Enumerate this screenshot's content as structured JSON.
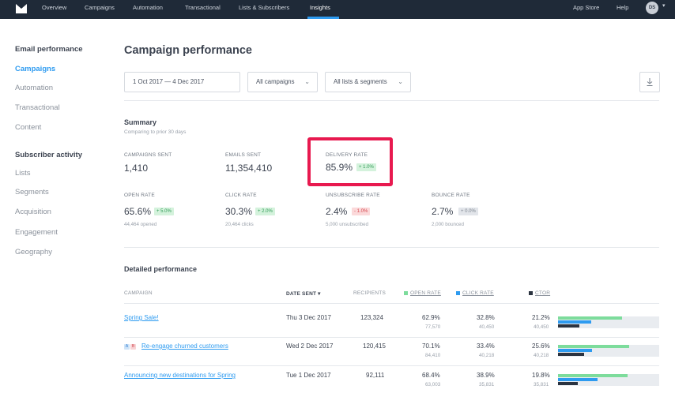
{
  "topnav": {
    "items": [
      "Overview",
      "Campaigns",
      "Automation",
      "Transactional",
      "Lists & Subscribers",
      "Insights"
    ],
    "right_items": [
      "App Store",
      "Help"
    ],
    "avatar_initials": "DS"
  },
  "sidebar": {
    "email_heading": "Email performance",
    "email_items": [
      "Campaigns",
      "Automation",
      "Transactional",
      "Content"
    ],
    "subscriber_heading": "Subscriber activity",
    "subscriber_items": [
      "Lists",
      "Segments",
      "Acquisition",
      "Engagement",
      "Geography"
    ]
  },
  "main": {
    "title": "Campaign performance",
    "date_range": "1 Oct 2017  —  4 Dec 2017",
    "campaign_filter": "All campaigns",
    "list_filter": "All lists & segments"
  },
  "summary": {
    "title": "Summary",
    "subtitle": "Comparing to prior 30 days",
    "metrics": [
      {
        "label": "CAMPAIGNS SENT",
        "value": "1,410"
      },
      {
        "label": "EMAILS SENT",
        "value": "11,354,410"
      },
      {
        "label": "DELIVERY RATE",
        "value": "85.9%",
        "badge": "+ 1.0%"
      },
      {
        "label": "OPEN RATE",
        "value": "65.6%",
        "badge": "+ 5.0%",
        "sub": "44,464 opened"
      },
      {
        "label": "CLICK RATE",
        "value": "30.3%",
        "badge": "+ 2.0%",
        "sub": "20,464 clicks"
      },
      {
        "label": "UNSUBSCRIBE RATE",
        "value": "2.4%",
        "badge": "- 1.0%",
        "sub": "5,000 unsubscribed"
      },
      {
        "label": "BOUNCE RATE",
        "value": "2.7%",
        "badge": "+ 0.0%",
        "sub": "2,000 bounced"
      }
    ]
  },
  "detailed": {
    "title": "Detailed performance",
    "columns": [
      "CAMPAIGN",
      "DATE SENT",
      "RECIPIENTS",
      "OPEN RATE",
      "CLICK RATE",
      "CTOR"
    ],
    "legend_colors": {
      "open": "#7ddc9c",
      "click": "#2e9bf0",
      "ctor": "#2b3340"
    },
    "rows": [
      {
        "name": "Spring Sale!",
        "date": "Thu 3 Dec 2017",
        "recipients": "123,324",
        "open": "62.9%",
        "open_sub": "77,570",
        "click": "32.8%",
        "click_sub": "40,450",
        "ctor": "21.2%",
        "ctor_sub": "40,450",
        "bars": {
          "open": 0.629,
          "click": 0.328,
          "ctor": 0.212
        }
      },
      {
        "name": "Re-engage churned customers",
        "tags": [
          "A",
          "B"
        ],
        "date": "Wed 2 Dec 2017",
        "recipients": "120,415",
        "open": "70.1%",
        "open_sub": "84,410",
        "click": "33.4%",
        "click_sub": "40,218",
        "ctor": "25.6%",
        "ctor_sub": "40,218",
        "bars": {
          "open": 0.701,
          "click": 0.334,
          "ctor": 0.256
        }
      },
      {
        "name": "Announcing new destinations for Spring",
        "date": "Tue 1 Dec 2017",
        "recipients": "92,111",
        "open": "68.4%",
        "open_sub": "63,003",
        "click": "38.9%",
        "click_sub": "35,831",
        "ctor": "19.8%",
        "ctor_sub": "35,831",
        "bars": {
          "open": 0.684,
          "click": 0.389,
          "ctor": 0.198
        }
      }
    ]
  }
}
